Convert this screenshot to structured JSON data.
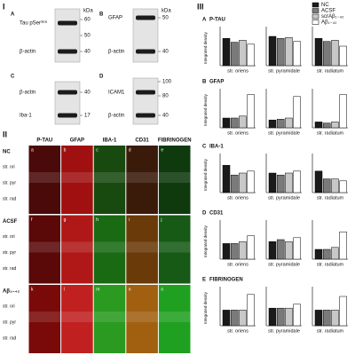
{
  "section_1": "I",
  "blots": [
    {
      "letter": "A",
      "labels": [
        "Tau pSer³⁹⁶",
        "β-actin"
      ],
      "kda_unit": "kDa",
      "kda": [
        60,
        50,
        40
      ]
    },
    {
      "letter": "B",
      "labels": [
        "GFAP",
        "β-actin"
      ],
      "kda_unit": "kDa",
      "kda": [
        50,
        40
      ]
    },
    {
      "letter": "C",
      "labels": [
        "β-actin",
        "Iba-1"
      ],
      "kda": [
        40,
        17
      ]
    },
    {
      "letter": "D",
      "labels": [
        "ICAM1",
        "β-actin"
      ],
      "kda": [
        100,
        80,
        40
      ]
    }
  ],
  "section_2": "II",
  "microscopy": {
    "columns": [
      "P-TAU",
      "GFAP",
      "IBA-1",
      "CD31",
      "FIBRINOGEN"
    ],
    "rows": [
      "NC",
      "ACSF",
      "Aβ₁₋₄₂"
    ],
    "regions": [
      "str. ori",
      "str. pyr",
      "str. rad"
    ],
    "panel_letters": [
      "a",
      "b",
      "c",
      "d",
      "e",
      "f",
      "g",
      "h",
      "i",
      "j",
      "k",
      "l",
      "m",
      "n",
      "o"
    ]
  },
  "section_3": "III",
  "chart_data": {
    "type": "bar",
    "y_label": "Integrated density",
    "ylim": [
      0,
      100
    ],
    "series": [
      {
        "name": "NC",
        "color": "#1a1a1a"
      },
      {
        "name": "ACSF",
        "color": "#7a7a7a"
      },
      {
        "name": "scrAβ₁₋₄₂",
        "color": "#c8c8c8"
      },
      {
        "name": "Aβ₁₋₄₂",
        "color": "#ffffff"
      }
    ],
    "groups": [
      {
        "letter": "A",
        "title": "P-TAU",
        "panels": [
          {
            "x_label": "str. oriens",
            "values": [
              70,
              60,
              65,
              55
            ]
          },
          {
            "x_label": "str. pyramidale",
            "values": [
              75,
              70,
              72,
              62
            ]
          },
          {
            "x_label": "str. radiatum",
            "values": [
              70,
              62,
              65,
              50
            ]
          }
        ]
      },
      {
        "letter": "B",
        "title": "GFAP",
        "panels": [
          {
            "x_label": "str. oriens",
            "values": [
              25,
              25,
              30,
              85
            ]
          },
          {
            "x_label": "str. pyramidale",
            "values": [
              20,
              22,
              25,
              80
            ]
          },
          {
            "x_label": "str. radiatum",
            "values": [
              15,
              12,
              15,
              85
            ]
          }
        ]
      },
      {
        "letter": "C",
        "title": "IBA-1",
        "panels": [
          {
            "x_label": "str. oriens",
            "values": [
              70,
              45,
              50,
              55
            ]
          },
          {
            "x_label": "str. pyramidale",
            "values": [
              50,
              45,
              50,
              55
            ]
          },
          {
            "x_label": "str. radiatum",
            "values": [
              55,
              35,
              35,
              30
            ]
          }
        ]
      },
      {
        "letter": "D",
        "title": "CD31",
        "panels": [
          {
            "x_label": "str. oriens",
            "values": [
              40,
              40,
              45,
              60
            ]
          },
          {
            "x_label": "str. pyramidale",
            "values": [
              45,
              50,
              45,
              55
            ]
          },
          {
            "x_label": "str. radiatum",
            "values": [
              25,
              25,
              30,
              70
            ]
          }
        ]
      },
      {
        "letter": "E",
        "title": "FIBRINOGEN",
        "panels": [
          {
            "x_label": "str. oriens",
            "values": [
              40,
              40,
              40,
              80
            ]
          },
          {
            "x_label": "str. pyramidale",
            "values": [
              45,
              45,
              45,
              55
            ]
          },
          {
            "x_label": "str. radiatum",
            "values": [
              40,
              40,
              40,
              75
            ]
          }
        ]
      }
    ]
  }
}
